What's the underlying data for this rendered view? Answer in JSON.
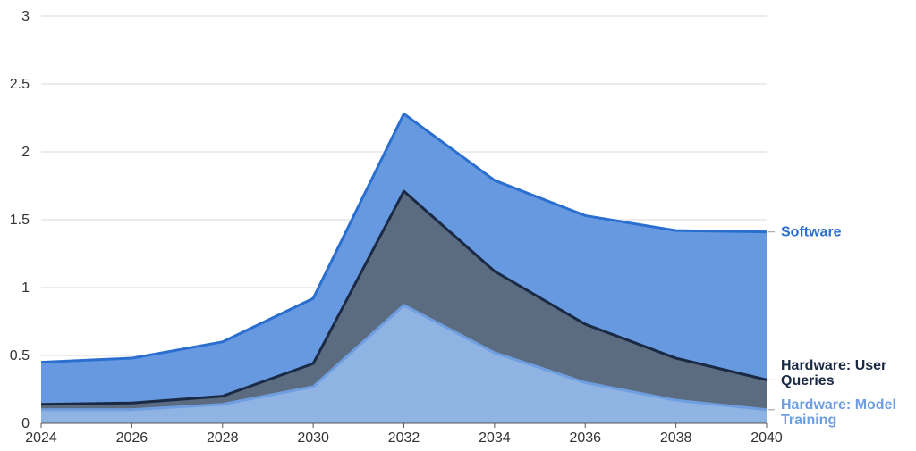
{
  "chart_data": {
    "type": "area",
    "stacked": true,
    "x": [
      2024,
      2026,
      2028,
      2030,
      2032,
      2034,
      2036,
      2038,
      2040
    ],
    "xticks": [
      "2024",
      "2026",
      "2028",
      "2030",
      "2032",
      "2034",
      "2036",
      "2038",
      "2040"
    ],
    "yticks": [
      "0",
      "0.5",
      "1",
      "1.5",
      "2",
      "2.5",
      "3"
    ],
    "ylim": [
      0,
      3
    ],
    "grid": true,
    "legend": "end-of-line labels (right)",
    "series": [
      {
        "name": "Hardware: Model Training",
        "label_lines": [
          "Hardware: Model",
          "Training"
        ],
        "values": [
          0.1,
          0.1,
          0.14,
          0.27,
          0.87,
          0.52,
          0.3,
          0.17,
          0.1
        ],
        "fill": "#8fb3e3",
        "stroke": "#6f9ee0",
        "label_color": "#6f9ee0"
      },
      {
        "name": "Hardware: User Queries",
        "label_lines": [
          "Hardware: User",
          "Queries"
        ],
        "values": [
          0.04,
          0.05,
          0.06,
          0.17,
          0.84,
          0.6,
          0.43,
          0.31,
          0.22
        ],
        "fill": "#5b6b80",
        "stroke": "#1b2a44",
        "label_color": "#1b2a44"
      },
      {
        "name": "Software",
        "label_lines": [
          "Software"
        ],
        "values": [
          0.31,
          0.33,
          0.4,
          0.48,
          0.57,
          0.67,
          0.8,
          0.94,
          1.09
        ],
        "fill": "#6699e0",
        "stroke": "#2a6fd0",
        "label_color": "#2a6fd0"
      }
    ]
  }
}
